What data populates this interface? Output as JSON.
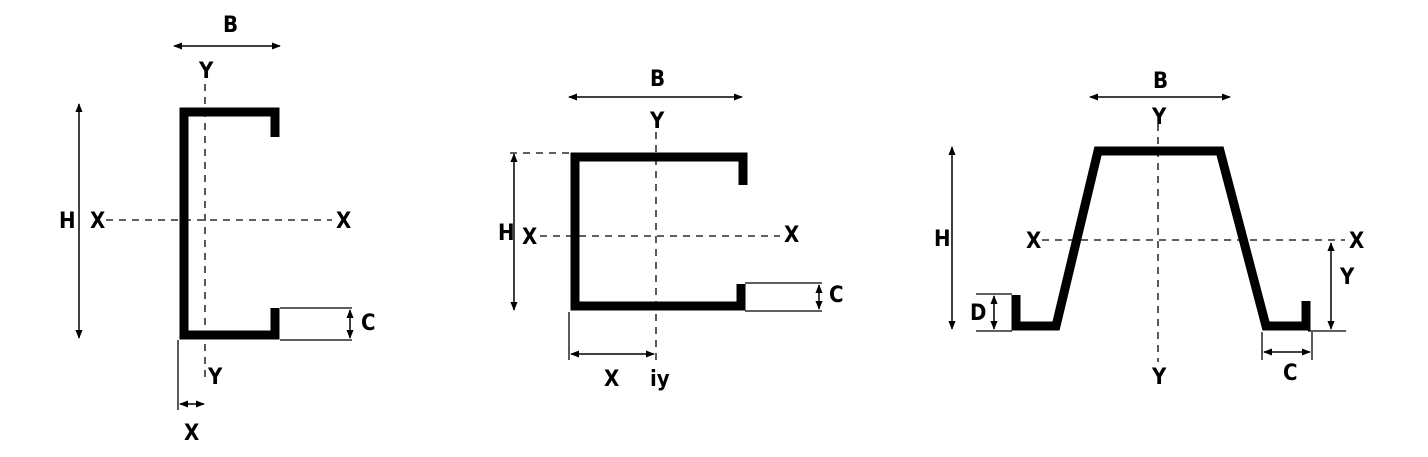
{
  "colors": {
    "stroke": "#000000",
    "background": "#ffffff"
  },
  "c_section": {
    "label_b": "B",
    "label_h": "H",
    "label_c": "C",
    "label_x_left": "X",
    "label_x_right": "X",
    "label_y_top": "Y",
    "label_y_bottom": "Y",
    "label_x_bottom": "X"
  },
  "u_section": {
    "label_b": "B",
    "label_h": "H",
    "label_c": "C",
    "label_x_left": "X",
    "label_x_right": "X",
    "label_y_top": "Y",
    "label_x_bottom": "X",
    "label_iy": "iy"
  },
  "omega_section": {
    "label_b": "B",
    "label_h": "H",
    "label_d": "D",
    "label_c": "C",
    "label_x_left": "X",
    "label_x_right": "X",
    "label_y_top": "Y",
    "label_y_bottom": "Y",
    "label_y_right": "Y"
  }
}
